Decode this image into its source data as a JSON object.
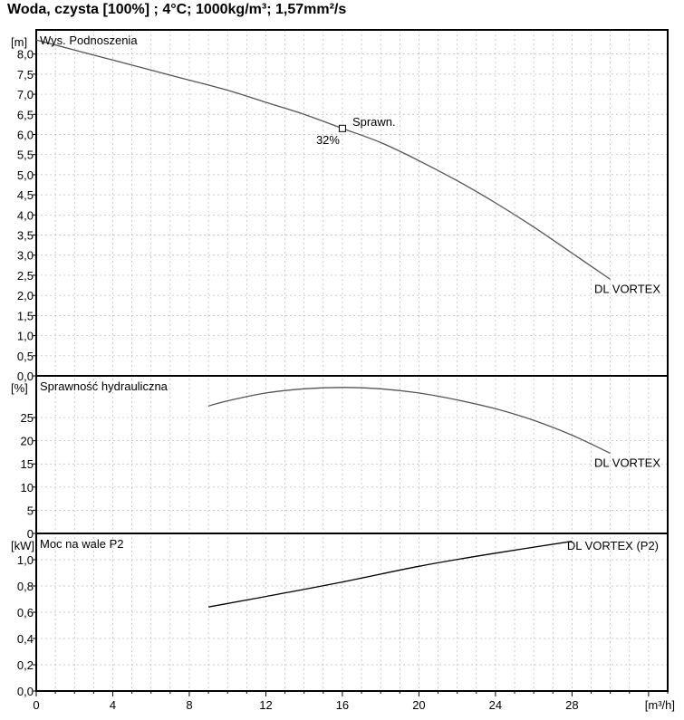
{
  "title": "Woda, czysta [100%] ; 4°C; 1000kg/m³; 1,57mm²/s",
  "x_axis": {
    "unit_label": "[m³/h]",
    "ticks": [
      "0",
      "4",
      "8",
      "12",
      "16",
      "20",
      "24",
      "28"
    ],
    "range": [
      0,
      33
    ]
  },
  "chart_data": [
    {
      "type": "line",
      "title": "Wys. Podnoszenia",
      "unit_label": "[m]",
      "ylim": [
        0,
        8.6
      ],
      "y_ticks": [
        "0,0",
        "0,5",
        "1,0",
        "1,5",
        "2,0",
        "2,5",
        "3,0",
        "3,5",
        "4,0",
        "4,5",
        "5,0",
        "5,5",
        "6,0",
        "6,5",
        "7,0",
        "7,5",
        "8,0"
      ],
      "grid": true,
      "series": [
        {
          "name": "DL VORTEX",
          "x": [
            0,
            2,
            4,
            6,
            8,
            10,
            12,
            14,
            16,
            18,
            20,
            22,
            24,
            26,
            28,
            30
          ],
          "y": [
            8.35,
            8.1,
            7.85,
            7.6,
            7.35,
            7.1,
            6.8,
            6.5,
            6.15,
            5.8,
            5.35,
            4.85,
            4.3,
            3.7,
            3.05,
            2.4
          ]
        }
      ],
      "annotations": {
        "marker": {
          "label": "Sprawn.",
          "value_label": "32%",
          "x": 16,
          "y": 6.15
        }
      }
    },
    {
      "type": "line",
      "title": "Sprawność hydrauliczna",
      "unit_label": "[%]",
      "ylim": [
        0,
        34
      ],
      "y_ticks": [
        "0",
        "5",
        "10",
        "15",
        "20",
        "25"
      ],
      "grid": true,
      "series": [
        {
          "name": "DL VORTEX",
          "x": [
            9,
            10,
            12,
            14,
            16,
            18,
            20,
            22,
            24,
            26,
            28,
            30
          ],
          "y": [
            27.5,
            28.6,
            30.3,
            31.2,
            31.5,
            31.2,
            30.3,
            28.8,
            26.9,
            24.4,
            21.2,
            17.3
          ]
        }
      ]
    },
    {
      "type": "line",
      "title": "Moc na wale P2",
      "unit_label": "[kW]",
      "ylim": [
        0,
        1.2
      ],
      "y_ticks": [
        "0,0",
        "0,2",
        "0,4",
        "0,6",
        "0,8",
        "1,0"
      ],
      "grid": true,
      "series": [
        {
          "name": "DL VORTEX (P2)",
          "x": [
            9,
            12,
            16,
            20,
            24,
            28
          ],
          "y": [
            0.64,
            0.72,
            0.83,
            0.95,
            1.05,
            1.14
          ]
        }
      ]
    }
  ]
}
